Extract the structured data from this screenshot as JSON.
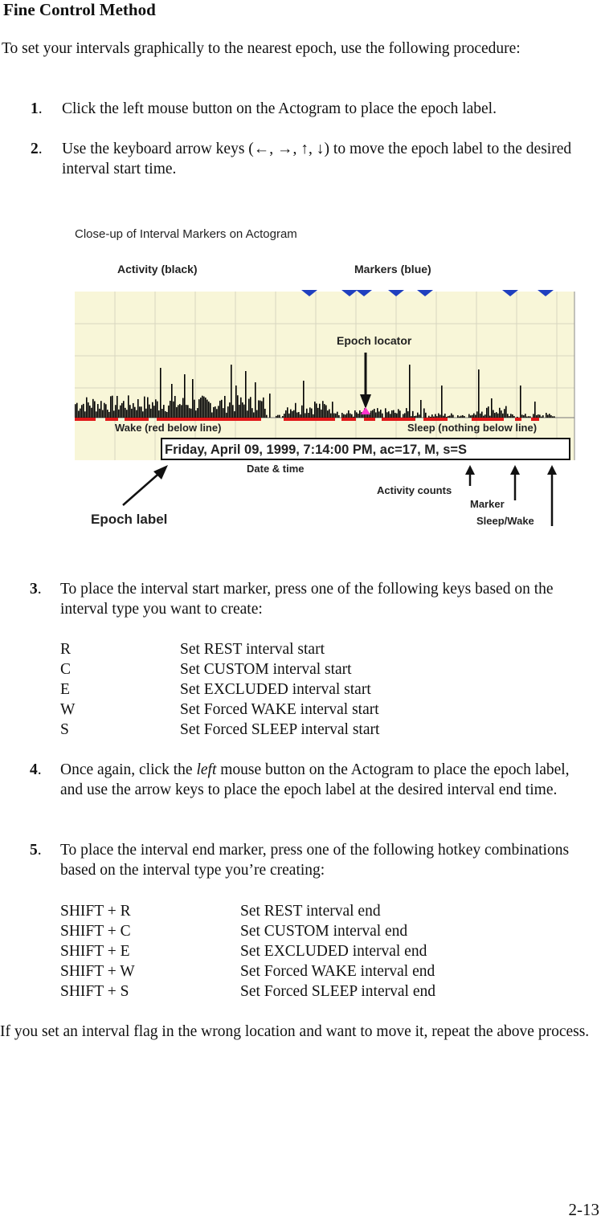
{
  "heading": "Fine Control Method",
  "intro": "To set your intervals graphically to the nearest epoch, use the following procedure:",
  "steps": {
    "s1": {
      "num": "1",
      "text": "Click the left mouse button on the Actogram to place the epoch label."
    },
    "s2": {
      "num": "2",
      "text": "Use the keyboard arrow keys (←, →, ↑, ↓) to move the epoch label to the desired interval start time."
    },
    "s3": {
      "num": "3",
      "text": "To place the interval start marker, press one of the following keys based on the interval type you want to create:"
    },
    "s4": {
      "num": "4",
      "pre": "Once again, click the ",
      "em": "left",
      "post": " mouse button on the Actogram to place the epoch label, and use the arrow keys to place the epoch label at the desired interval end time."
    },
    "s5": {
      "num": "5",
      "text": "To place the interval end marker, press one of the following hotkey combinations based on the interval type you’re creating:"
    }
  },
  "start_keys": [
    {
      "key": "R",
      "desc": "Set REST interval start"
    },
    {
      "key": "C",
      "desc": "Set CUSTOM interval start"
    },
    {
      "key": "E",
      "desc": "Set EXCLUDED interval start"
    },
    {
      "key": "W",
      "desc": "Set Forced WAKE interval start"
    },
    {
      "key": "S",
      "desc": "Set Forced SLEEP interval start"
    }
  ],
  "end_keys": [
    {
      "key": "SHIFT + R",
      "desc": "Set REST interval end"
    },
    {
      "key": "SHIFT + C",
      "desc": "Set CUSTOM interval end"
    },
    {
      "key": "SHIFT + E",
      "desc": "Set EXCLUDED interval end"
    },
    {
      "key": "SHIFT + W",
      "desc": "Set Forced WAKE interval end"
    },
    {
      "key": "SHIFT + S",
      "desc": "Set Forced SLEEP interval end"
    }
  ],
  "closing": "If you set an interval flag in the wrong location and want to move it, repeat the above process.",
  "page_number": "2-13",
  "figure": {
    "caption": "Close-up of Interval Markers on Actogram",
    "labels": {
      "activity": "Activity (black)",
      "markers": "Markers (blue)",
      "epoch_locator": "Epoch locator",
      "wake": "Wake (red below line)",
      "sleep": "Sleep (nothing below line)",
      "epoch_readout": "Friday, April 09, 1999, 7:14:00 PM, ac=17, M, s=S",
      "date_time": "Date & time",
      "activity_counts": "Activity counts",
      "marker": "Marker",
      "sleep_wake": "Sleep/Wake",
      "epoch_label": "Epoch label"
    },
    "colors": {
      "marker": "#1f3fbf",
      "wake": "#e01818",
      "locator": "#ff33cc",
      "grid_bg": "#f8f6d8",
      "activity": "#000000"
    }
  }
}
